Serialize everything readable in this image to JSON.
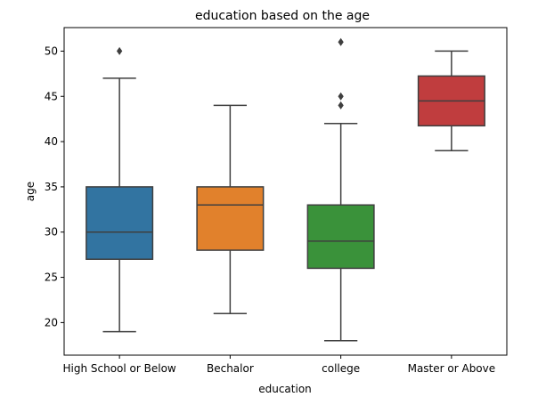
{
  "chart_data": {
    "type": "box",
    "title": "education based on the age",
    "xlabel": "education",
    "ylabel": "age",
    "ylim": [
      16.4,
      52.6
    ],
    "yticks": [
      20,
      25,
      30,
      35,
      40,
      45,
      50
    ],
    "grid": false,
    "categories": [
      "High School or Below",
      "Bechalor",
      "college",
      "Master or Above"
    ],
    "boxes": [
      {
        "category": "High School or Below",
        "whisker_low": 19,
        "q1": 27,
        "median": 30,
        "q3": 35,
        "whisker_high": 47,
        "outliers": [
          50
        ],
        "color": "#3274a1"
      },
      {
        "category": "Bechalor",
        "whisker_low": 21,
        "q1": 28,
        "median": 33,
        "q3": 35,
        "whisker_high": 44,
        "outliers": [],
        "color": "#e1812c"
      },
      {
        "category": "college",
        "whisker_low": 18,
        "q1": 26,
        "median": 29,
        "q3": 33,
        "whisker_high": 42,
        "outliers": [
          44,
          45,
          51
        ],
        "color": "#3a923a"
      },
      {
        "category": "Master or Above",
        "whisker_low": 39,
        "q1": 41.75,
        "median": 44.5,
        "q3": 47.25,
        "whisker_high": 50,
        "outliers": [],
        "color": "#c03d3e"
      }
    ]
  }
}
